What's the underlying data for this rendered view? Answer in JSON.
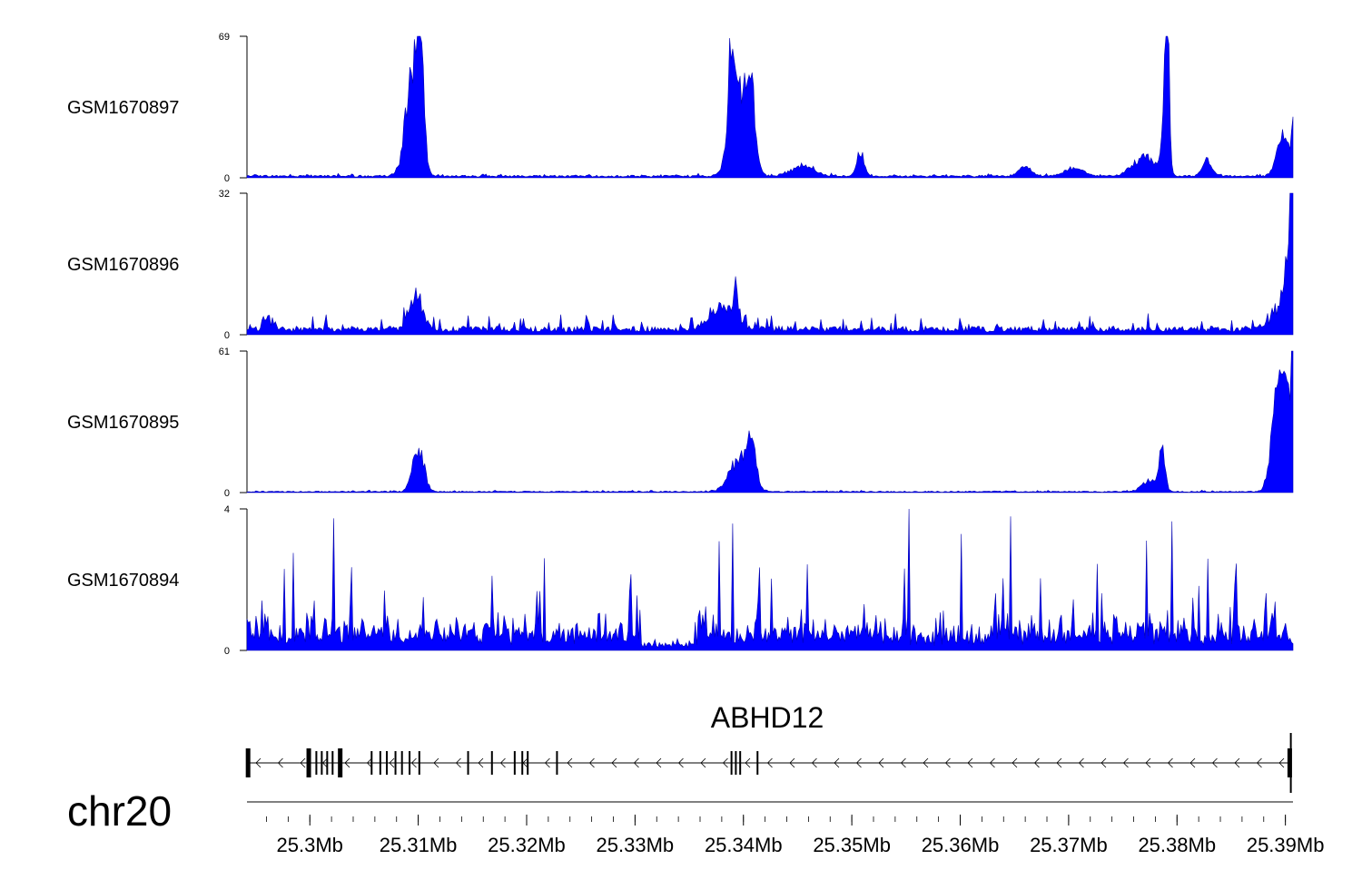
{
  "chart_data": {
    "type": "area",
    "chromosome": "chr20",
    "xlim": [
      25.2942,
      25.3907
    ],
    "xunit": "Mb",
    "x_ticks": [
      25.3,
      25.31,
      25.32,
      25.33,
      25.34,
      25.35,
      25.36,
      25.37,
      25.38,
      25.39
    ],
    "x_tick_labels": [
      "25.3Mb",
      "25.31Mb",
      "25.32Mb",
      "25.33Mb",
      "25.34Mb",
      "25.35Mb",
      "25.36Mb",
      "25.37Mb",
      "25.38Mb",
      "25.39Mb"
    ],
    "series_color": "#0000ff",
    "tracks": [
      {
        "name": "GSM1670897",
        "ylim": [
          0,
          69
        ],
        "y_tick_labels": [
          "0",
          "69"
        ],
        "baseline": 1,
        "noise": 1,
        "peaks": [
          {
            "x": 25.3095,
            "height": 55,
            "width": 0.0009
          },
          {
            "x": 25.3102,
            "height": 64,
            "width": 0.0004
          },
          {
            "x": 25.3396,
            "height": 42,
            "width": 0.0011
          },
          {
            "x": 25.3407,
            "height": 36,
            "width": 0.0006
          },
          {
            "x": 25.3389,
            "height": 47,
            "width": 0.0004
          },
          {
            "x": 25.3508,
            "height": 12,
            "width": 0.0005
          },
          {
            "x": 25.3455,
            "height": 5,
            "width": 0.0015
          },
          {
            "x": 25.366,
            "height": 5,
            "width": 0.0008
          },
          {
            "x": 25.3705,
            "height": 4,
            "width": 0.0012
          },
          {
            "x": 25.377,
            "height": 10,
            "width": 0.0015
          },
          {
            "x": 25.3789,
            "height": 35,
            "width": 0.0004
          },
          {
            "x": 25.3791,
            "height": 68,
            "width": 0.00025
          },
          {
            "x": 25.3828,
            "height": 8,
            "width": 0.0006
          },
          {
            "x": 25.3898,
            "height": 20,
            "width": 0.0008
          },
          {
            "x": 25.3907,
            "height": 24,
            "width": 0.0002
          }
        ]
      },
      {
        "name": "GSM1670896",
        "ylim": [
          0,
          32
        ],
        "y_tick_labels": [
          "0",
          "32"
        ],
        "baseline": 1.5,
        "noise": 3,
        "peaks": [
          {
            "x": 25.3098,
            "height": 8,
            "width": 0.0009
          },
          {
            "x": 25.338,
            "height": 5,
            "width": 0.0015
          },
          {
            "x": 25.3393,
            "height": 9,
            "width": 0.0003
          },
          {
            "x": 25.296,
            "height": 3,
            "width": 0.0005
          },
          {
            "x": 25.3895,
            "height": 5,
            "width": 0.0012
          },
          {
            "x": 25.3905,
            "height": 20,
            "width": 0.0006
          },
          {
            "x": 25.3907,
            "height": 31,
            "width": 0.00025
          }
        ]
      },
      {
        "name": "GSM1670895",
        "ylim": [
          0,
          61
        ],
        "y_tick_labels": [
          "0",
          "61"
        ],
        "baseline": 0.5,
        "noise": 0.5,
        "peaks": [
          {
            "x": 25.31,
            "height": 22,
            "width": 0.0007
          },
          {
            "x": 25.3395,
            "height": 14,
            "width": 0.0012
          },
          {
            "x": 25.3407,
            "height": 24,
            "width": 0.0006
          },
          {
            "x": 25.3786,
            "height": 18,
            "width": 0.0004
          },
          {
            "x": 25.3775,
            "height": 5,
            "width": 0.001
          },
          {
            "x": 25.3893,
            "height": 45,
            "width": 0.0008
          },
          {
            "x": 25.3902,
            "height": 42,
            "width": 0.0006
          },
          {
            "x": 25.3907,
            "height": 50,
            "width": 0.0002
          }
        ]
      },
      {
        "name": "GSM1670894",
        "ylim": [
          0,
          4
        ],
        "y_tick_labels": [
          "0",
          "4"
        ],
        "baseline": 0.6,
        "noise": 2.2,
        "high_noise_region": [
          25.3355,
          25.3907
        ],
        "low_region": [
          25.3305,
          25.3355
        ],
        "peaks": []
      }
    ],
    "gene": {
      "name": "ABHD12",
      "strand": "-",
      "start": 25.2942,
      "end": 25.3905,
      "exons": [
        {
          "x": 25.2943,
          "thick": true
        },
        {
          "x": 25.2999,
          "thick": true
        },
        {
          "x": 25.3006,
          "thick": false
        },
        {
          "x": 25.3011,
          "thick": false
        },
        {
          "x": 25.3016,
          "thick": false
        },
        {
          "x": 25.3021,
          "thick": false
        },
        {
          "x": 25.3028,
          "thick": true
        },
        {
          "x": 25.3057,
          "thick": false
        },
        {
          "x": 25.3065,
          "thick": false
        },
        {
          "x": 25.3071,
          "thick": false
        },
        {
          "x": 25.3079,
          "thick": false
        },
        {
          "x": 25.3085,
          "thick": false
        },
        {
          "x": 25.3092,
          "thick": false
        },
        {
          "x": 25.3101,
          "thick": false
        },
        {
          "x": 25.3146,
          "thick": false
        },
        {
          "x": 25.3168,
          "thick": false
        },
        {
          "x": 25.3189,
          "thick": false
        },
        {
          "x": 25.3196,
          "thick": false
        },
        {
          "x": 25.3201,
          "thick": false
        },
        {
          "x": 25.3228,
          "thick": false
        },
        {
          "x": 25.3389,
          "thick": false
        },
        {
          "x": 25.3393,
          "thick": false
        },
        {
          "x": 25.3397,
          "thick": false
        },
        {
          "x": 25.3413,
          "thick": false
        },
        {
          "x": 25.3904,
          "thick": true
        }
      ]
    }
  }
}
